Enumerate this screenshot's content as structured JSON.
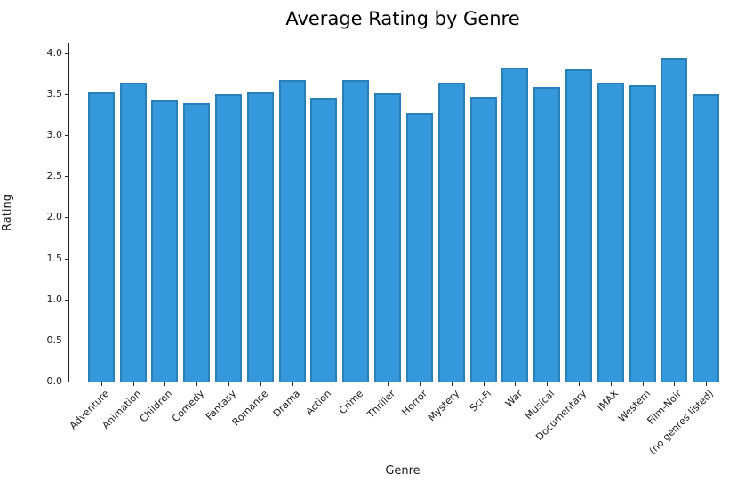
{
  "chart_data": {
    "type": "bar",
    "title": "Average Rating by Genre",
    "xlabel": "Genre",
    "ylabel": "Rating",
    "categories": [
      "Adventure",
      "Animation",
      "Children",
      "Comedy",
      "Fantasy",
      "Romance",
      "Drama",
      "Action",
      "Crime",
      "Thriller",
      "Horror",
      "Mystery",
      "Sci-Fi",
      "War",
      "Musical",
      "Documentary",
      "IMAX",
      "Western",
      "Film-Noir",
      "(no genres listed)"
    ],
    "values": [
      3.52,
      3.64,
      3.42,
      3.39,
      3.5,
      3.52,
      3.67,
      3.46,
      3.67,
      3.51,
      3.27,
      3.64,
      3.47,
      3.83,
      3.59,
      3.81,
      3.64,
      3.61,
      3.95,
      3.5
    ],
    "ylim": [
      0,
      4.13
    ],
    "yticks": [
      0.0,
      0.5,
      1.0,
      1.5,
      2.0,
      2.5,
      3.0,
      3.5,
      4.0
    ],
    "ytick_format_decimals": 1,
    "x_tick_rotation_deg": 45,
    "grid": false,
    "legend_position": "none",
    "bar_fill_color": "#3498db",
    "bar_edge_color": "#2980b9",
    "axis_color": "#262626",
    "text_color": "#1a1a1a"
  }
}
